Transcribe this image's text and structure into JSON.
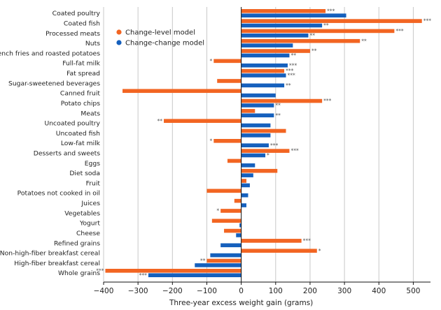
{
  "chart_data": {
    "type": "bar",
    "orientation": "horizontal",
    "xlabel": "Three-year excess weight gain (grams)",
    "ylabel": "",
    "xlim": [
      -400,
      550
    ],
    "xticks": [
      -400,
      -300,
      -200,
      -100,
      0,
      100,
      200,
      300,
      400,
      500
    ],
    "xtick_labels": [
      "−400",
      "−300",
      "−200",
      "−100",
      "0",
      "100",
      "200",
      "300",
      "400",
      "500"
    ],
    "grid": "vertical",
    "legend_position": "top-left",
    "categories": [
      "Coated poultry",
      "Coated fish",
      "Processed meats",
      "Nuts",
      "French fries and roasted potatoes",
      "Full-fat milk",
      "Fat spread",
      "Sugar-sweetened beverages",
      "Canned fruit",
      "Potato chips",
      "Meats",
      "Uncoated poultry",
      "Uncoated fish",
      "Low-fat milk",
      "Desserts and sweets",
      "Eggs",
      "Diet soda",
      "Fruit",
      "Potatoes not cooked in oil",
      "Juices",
      "Vegetables",
      "Yogurt",
      "Cheese",
      "Refined grains",
      "Non-high-fiber breakfast cereal",
      "High-fiber breakfast cereal",
      "Whole grains"
    ],
    "series": [
      {
        "name": "Change-level model",
        "color": "#f26522",
        "values": [
          245,
          525,
          445,
          345,
          200,
          -80,
          125,
          -70,
          -345,
          235,
          40,
          -225,
          130,
          -80,
          140,
          -40,
          105,
          15,
          -100,
          -20,
          -60,
          -85,
          -50,
          175,
          220,
          -100,
          -395
        ],
        "significance": [
          "***",
          "***",
          "***",
          "**",
          "**",
          "*",
          "***",
          "",
          "",
          "***",
          "",
          "**",
          "",
          "*",
          "***",
          "",
          "",
          "",
          "",
          "",
          "*",
          "",
          "",
          "***",
          "*",
          "**",
          "***"
        ]
      },
      {
        "name": "Change-change model",
        "color": "#1560bd",
        "values": [
          305,
          235,
          195,
          150,
          140,
          135,
          130,
          125,
          100,
          95,
          95,
          85,
          85,
          80,
          70,
          40,
          35,
          25,
          20,
          15,
          0,
          -5,
          -15,
          -60,
          -90,
          -135,
          -270
        ],
        "significance": [
          "",
          "**",
          "**",
          "",
          "**",
          "***",
          "***",
          "**",
          "",
          "**",
          "**",
          "",
          "",
          "***",
          "*",
          "",
          "",
          "",
          "",
          "",
          "",
          "",
          "",
          "",
          "",
          "",
          "***"
        ]
      }
    ]
  }
}
